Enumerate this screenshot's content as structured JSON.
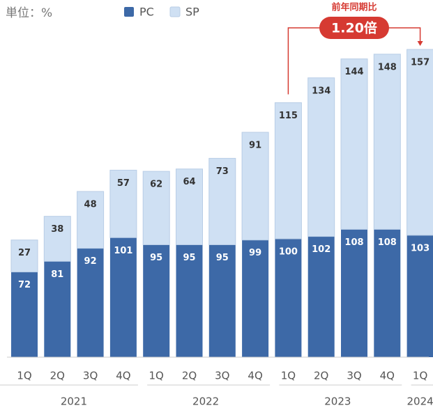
{
  "chart_data": {
    "type": "stacked_bar",
    "unit_label": "単位：%",
    "categories": [
      "1Q",
      "2Q",
      "3Q",
      "4Q",
      "1Q",
      "2Q",
      "3Q",
      "4Q",
      "1Q",
      "2Q",
      "3Q",
      "4Q",
      "1Q"
    ],
    "groups": [
      {
        "label": "2021",
        "span": 4
      },
      {
        "label": "2022",
        "span": 4
      },
      {
        "label": "2023",
        "span": 4
      },
      {
        "label": "2024",
        "span": 1
      }
    ],
    "series": [
      {
        "name": "PC",
        "color": "#3d69a7",
        "values": [
          72,
          81,
          92,
          101,
          95,
          95,
          95,
          99,
          100,
          102,
          108,
          108,
          103
        ]
      },
      {
        "name": "SP",
        "color": "#cfe0f3",
        "values": [
          27,
          38,
          48,
          57,
          62,
          64,
          73,
          91,
          115,
          134,
          144,
          148,
          157
        ]
      }
    ],
    "annotation": {
      "title": "前年同期比",
      "value": "1.20倍",
      "color": "#d63a32",
      "from": 8,
      "to": 12
    }
  }
}
